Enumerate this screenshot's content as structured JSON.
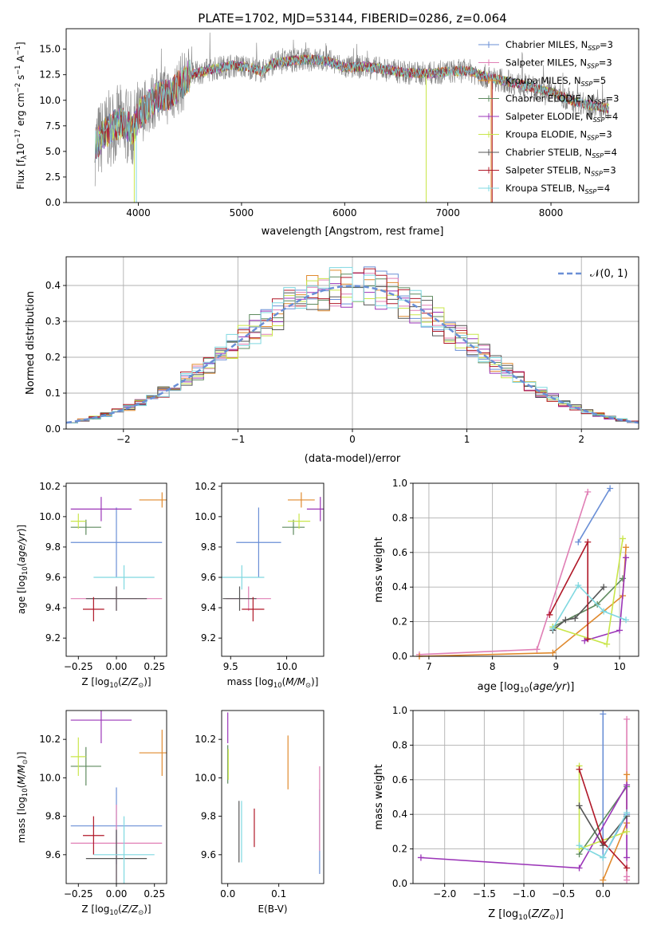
{
  "colors": {
    "Chabrier MILES": "#6a8fd6",
    "Salpeter MILES": "#e07fb5",
    "Kroupa MILES": "#e08a2e",
    "Chabrier ELODIE": "#5e8a5e",
    "Salpeter ELODIE": "#9b35b8",
    "Kroupa ELODIE": "#c9e64a",
    "Chabrier STELIB": "#555555",
    "Salpeter STELIB": "#b01828",
    "Kroupa STELIB": "#7fd8e0",
    "data": "#808080",
    "grid": "#b0b0b0"
  },
  "chart_data": [
    {
      "type": "line",
      "title": "PLATE=1702, MJD=53144, FIBERID=0286, z=0.064",
      "xlabel": "wavelength [Angstrom, rest frame]",
      "ylabel": "Flux [f_λ 10^-17 erg cm^-2 s^-1 A^-1]",
      "xlim": [
        3300,
        8850
      ],
      "ylim": [
        0,
        17
      ],
      "xticks": [
        4000,
        5000,
        6000,
        7000,
        8000
      ],
      "yticks": [
        0.0,
        2.5,
        5.0,
        7.5,
        10.0,
        12.5,
        15.0
      ],
      "grid": false,
      "legend_position": "right",
      "legend": [
        {
          "model": "Chabrier MILES",
          "n": 3
        },
        {
          "model": "Salpeter MILES",
          "n": 3
        },
        {
          "model": "Kroupa MILES",
          "n": 5
        },
        {
          "model": "Chabrier ELODIE",
          "n": 3
        },
        {
          "model": "Salpeter ELODIE",
          "n": 4
        },
        {
          "model": "Kroupa ELODIE",
          "n": 3
        },
        {
          "model": "Chabrier STELIB",
          "n": 4
        },
        {
          "model": "Salpeter STELIB",
          "n": 3
        },
        {
          "model": "Kroupa STELIB",
          "n": 4
        }
      ],
      "continuum": [
        [
          3580,
          5.5
        ],
        [
          3650,
          6.5
        ],
        [
          3750,
          7.5
        ],
        [
          3850,
          7.8
        ],
        [
          3950,
          7.0
        ],
        [
          4000,
          8.5
        ],
        [
          4100,
          9.5
        ],
        [
          4200,
          10.5
        ],
        [
          4300,
          10.5
        ],
        [
          4400,
          11.5
        ],
        [
          4500,
          12.5
        ],
        [
          4700,
          13.0
        ],
        [
          4900,
          13.4
        ],
        [
          5100,
          13.2
        ],
        [
          5200,
          12.8
        ],
        [
          5300,
          13.6
        ],
        [
          5500,
          13.9
        ],
        [
          5700,
          14.0
        ],
        [
          5850,
          13.8
        ],
        [
          6000,
          13.2
        ],
        [
          6200,
          13.3
        ],
        [
          6400,
          13.0
        ],
        [
          6600,
          12.7
        ],
        [
          6800,
          12.6
        ],
        [
          7000,
          12.8
        ],
        [
          7200,
          12.9
        ],
        [
          7400,
          12.2
        ],
        [
          7600,
          11.8
        ],
        [
          7800,
          11.3
        ],
        [
          8000,
          10.8
        ],
        [
          8200,
          10.0
        ],
        [
          8400,
          9.5
        ],
        [
          8560,
          9.2
        ]
      ]
    },
    {
      "type": "histogram",
      "xlabel": "(data-model)/error",
      "ylabel": "Normed distribution",
      "xlim": [
        -2.5,
        2.5
      ],
      "ylim": [
        0,
        0.48
      ],
      "xticks": [
        -2,
        -1,
        0,
        1,
        2
      ],
      "yticks": [
        0.0,
        0.1,
        0.2,
        0.3,
        0.4
      ],
      "grid": true,
      "legend_position": "top-right",
      "legend_label": "𝒩(0, 1)",
      "bin_width": 0.1
    },
    {
      "type": "scatter",
      "xlabel": "Z [log10(Z/Z☉)]",
      "ylabel": "age [log10(age/yr)]",
      "xlim": [
        -0.33,
        0.33
      ],
      "ylim": [
        9.08,
        10.22
      ],
      "xticks": [
        -0.25,
        0.0,
        0.25
      ],
      "xtick_labels": [
        "−0.25",
        "0.00",
        "0.25"
      ],
      "yticks": [
        9.2,
        9.4,
        9.6,
        9.8,
        10.0,
        10.2
      ],
      "points": [
        {
          "model": "Chabrier MILES",
          "x": 0.0,
          "xerr": 0.3,
          "y": 9.83,
          "yerr": 0.23
        },
        {
          "model": "Salpeter MILES",
          "x": 0.0,
          "xerr": 0.3,
          "y": 9.46,
          "yerr": 0.08
        },
        {
          "model": "Kroupa MILES",
          "x": 0.3,
          "xerr": 0.15,
          "y": 10.11,
          "yerr": 0.05
        },
        {
          "model": "Chabrier ELODIE",
          "x": -0.2,
          "xerr": 0.1,
          "y": 9.93,
          "yerr": 0.05
        },
        {
          "model": "Salpeter ELODIE",
          "x": -0.1,
          "xerr": 0.2,
          "y": 10.05,
          "yerr": 0.08
        },
        {
          "model": "Kroupa ELODIE",
          "x": -0.25,
          "xerr": 0.05,
          "y": 9.97,
          "yerr": 0.05
        },
        {
          "model": "Chabrier STELIB",
          "x": 0.0,
          "xerr": 0.2,
          "y": 9.46,
          "yerr": 0.08
        },
        {
          "model": "Salpeter STELIB",
          "x": -0.15,
          "xerr": 0.07,
          "y": 9.39,
          "yerr": 0.08
        },
        {
          "model": "Kroupa STELIB",
          "x": 0.05,
          "xerr": 0.2,
          "y": 9.6,
          "yerr": 0.08
        }
      ]
    },
    {
      "type": "scatter",
      "xlabel": "mass [log10(M/M☉)]",
      "ylabel": "",
      "xlim": [
        9.42,
        10.33
      ],
      "ylim": [
        9.08,
        10.22
      ],
      "xticks": [
        9.5,
        10.0
      ],
      "xtick_labels": [
        "9.5",
        "10.0"
      ],
      "yticks": [
        9.2,
        9.4,
        9.6,
        9.8,
        10.0,
        10.2
      ],
      "points": [
        {
          "model": "Chabrier MILES",
          "x": 9.75,
          "xerr": 0.2,
          "y": 9.83,
          "yerr": 0.23
        },
        {
          "model": "Salpeter MILES",
          "x": 9.66,
          "xerr": 0.2,
          "y": 9.46,
          "yerr": 0.08
        },
        {
          "model": "Kroupa MILES",
          "x": 10.13,
          "xerr": 0.12,
          "y": 10.11,
          "yerr": 0.05
        },
        {
          "model": "Chabrier ELODIE",
          "x": 10.06,
          "xerr": 0.1,
          "y": 9.93,
          "yerr": 0.05
        },
        {
          "model": "Salpeter ELODIE",
          "x": 10.3,
          "xerr": 0.12,
          "y": 10.05,
          "yerr": 0.08
        },
        {
          "model": "Kroupa ELODIE",
          "x": 10.11,
          "xerr": 0.1,
          "y": 9.97,
          "yerr": 0.05
        },
        {
          "model": "Chabrier STELIB",
          "x": 9.58,
          "xerr": 0.15,
          "y": 9.46,
          "yerr": 0.08
        },
        {
          "model": "Salpeter STELIB",
          "x": 9.7,
          "xerr": 0.1,
          "y": 9.39,
          "yerr": 0.08
        },
        {
          "model": "Kroupa STELIB",
          "x": 9.6,
          "xerr": 0.2,
          "y": 9.6,
          "yerr": 0.08
        }
      ]
    },
    {
      "type": "line",
      "xlabel": "age [log10(age/yr)]",
      "ylabel": "mass weight",
      "xlim": [
        6.75,
        10.3
      ],
      "ylim": [
        0,
        1.0
      ],
      "xticks": [
        7,
        8,
        9,
        10
      ],
      "yticks": [
        0.0,
        0.2,
        0.4,
        0.6,
        0.8,
        1.0
      ],
      "grid": true,
      "series": [
        {
          "model": "Chabrier MILES",
          "x": [
            9.35,
            9.85
          ],
          "y": [
            0.66,
            0.97
          ]
        },
        {
          "model": "Salpeter MILES",
          "x": [
            6.85,
            8.7,
            9.5
          ],
          "y": [
            0.01,
            0.04,
            0.95
          ]
        },
        {
          "model": "Kroupa MILES",
          "x": [
            6.85,
            8.95,
            10.05,
            10.1
          ],
          "y": [
            0.0,
            0.02,
            0.35,
            0.63
          ]
        },
        {
          "model": "Chabrier ELODIE",
          "x": [
            8.95,
            9.65,
            10.05
          ],
          "y": [
            0.17,
            0.3,
            0.45
          ]
        },
        {
          "model": "Salpeter ELODIE",
          "x": [
            9.45,
            10.0,
            10.1
          ],
          "y": [
            0.09,
            0.15,
            0.57
          ]
        },
        {
          "model": "Kroupa ELODIE",
          "x": [
            8.95,
            9.8,
            10.05
          ],
          "y": [
            0.17,
            0.07,
            0.68
          ]
        },
        {
          "model": "Chabrier STELIB",
          "x": [
            8.95,
            9.15,
            9.3,
            9.75
          ],
          "y": [
            0.15,
            0.21,
            0.22,
            0.4
          ]
        },
        {
          "model": "Salpeter STELIB",
          "x": [
            8.9,
            9.5,
            9.5
          ],
          "y": [
            0.24,
            0.66,
            0.1
          ]
        },
        {
          "model": "Kroupa STELIB",
          "x": [
            8.95,
            9.35,
            9.75,
            10.1
          ],
          "y": [
            0.16,
            0.41,
            0.26,
            0.21
          ]
        }
      ]
    },
    {
      "type": "scatter",
      "xlabel": "Z [log10(Z/Z☉)]",
      "ylabel": "mass [log10(M/M☉)]",
      "xlim": [
        -0.33,
        0.33
      ],
      "ylim": [
        9.45,
        10.35
      ],
      "xticks": [
        -0.25,
        0.0,
        0.25
      ],
      "xtick_labels": [
        "−0.25",
        "0.00",
        "0.25"
      ],
      "yticks": [
        9.6,
        9.8,
        10.0,
        10.2
      ],
      "points": [
        {
          "model": "Chabrier MILES",
          "x": 0.0,
          "xerr": 0.3,
          "y": 9.75,
          "yerr": 0.2
        },
        {
          "model": "Salpeter MILES",
          "x": 0.0,
          "xerr": 0.3,
          "y": 9.66,
          "yerr": 0.2
        },
        {
          "model": "Kroupa MILES",
          "x": 0.3,
          "xerr": 0.15,
          "y": 10.13,
          "yerr": 0.12
        },
        {
          "model": "Chabrier ELODIE",
          "x": -0.2,
          "xerr": 0.1,
          "y": 10.06,
          "yerr": 0.1
        },
        {
          "model": "Salpeter ELODIE",
          "x": -0.1,
          "xerr": 0.2,
          "y": 10.3,
          "yerr": 0.12
        },
        {
          "model": "Kroupa ELODIE",
          "x": -0.25,
          "xerr": 0.05,
          "y": 10.11,
          "yerr": 0.1
        },
        {
          "model": "Chabrier STELIB",
          "x": 0.0,
          "xerr": 0.2,
          "y": 9.58,
          "yerr": 0.15
        },
        {
          "model": "Salpeter STELIB",
          "x": -0.15,
          "xerr": 0.07,
          "y": 9.7,
          "yerr": 0.1
        },
        {
          "model": "Kroupa STELIB",
          "x": 0.05,
          "xerr": 0.2,
          "y": 9.6,
          "yerr": 0.2
        }
      ]
    },
    {
      "type": "scatter",
      "xlabel": "E(B-V)",
      "ylabel": "",
      "xlim": [
        -0.012,
        0.188
      ],
      "ylim": [
        9.45,
        10.35
      ],
      "xticks": [
        0.0,
        0.1
      ],
      "xtick_labels": [
        "0.0",
        "0.1"
      ],
      "yticks": [
        9.6,
        9.8,
        10.0,
        10.2
      ],
      "points": [
        {
          "model": "Chabrier MILES",
          "x": 0.18,
          "y": 9.72,
          "yerr": 0.22
        },
        {
          "model": "Salpeter MILES",
          "x": 0.18,
          "y": 9.84,
          "yerr": 0.22
        },
        {
          "model": "Kroupa MILES",
          "x": 0.118,
          "y": 10.08,
          "yerr": 0.14
        },
        {
          "model": "Chabrier ELODIE",
          "x": 0.0,
          "y": 10.07,
          "yerr": 0.1
        },
        {
          "model": "Salpeter ELODIE",
          "x": 0.0,
          "y": 10.26,
          "yerr": 0.08
        },
        {
          "model": "Kroupa ELODIE",
          "x": 0.001,
          "y": 10.07,
          "yerr": 0.08
        },
        {
          "model": "Chabrier STELIB",
          "x": 0.022,
          "y": 9.72,
          "yerr": 0.16
        },
        {
          "model": "Salpeter STELIB",
          "x": 0.052,
          "y": 9.74,
          "yerr": 0.1
        },
        {
          "model": "Kroupa STELIB",
          "x": 0.027,
          "y": 9.72,
          "yerr": 0.16
        }
      ]
    },
    {
      "type": "line",
      "xlabel": "Z [log10(Z/Z☉)]",
      "ylabel": "mass weight",
      "xlim": [
        -2.4,
        0.45
      ],
      "ylim": [
        0,
        1.0
      ],
      "xticks": [
        -2.0,
        -1.5,
        -1.0,
        -0.5,
        0.0
      ],
      "xtick_labels": [
        "−2.0",
        "−1.5",
        "−1.0",
        "−0.5",
        "0.0"
      ],
      "yticks": [
        0.0,
        0.2,
        0.4,
        0.6,
        0.8,
        1.0
      ],
      "grid": true,
      "series": [
        {
          "model": "Chabrier MILES",
          "x": [
            0.0,
            0.0,
            0.3
          ],
          "y": [
            0.98,
            0.15,
            0.4
          ]
        },
        {
          "model": "Salpeter MILES",
          "x": [
            0.3,
            0.3,
            0.3
          ],
          "y": [
            0.95,
            0.04,
            0.02
          ]
        },
        {
          "model": "Kroupa MILES",
          "x": [
            0.0,
            0.3,
            0.3
          ],
          "y": [
            0.02,
            0.35,
            0.63
          ]
        },
        {
          "model": "Chabrier ELODIE",
          "x": [
            -0.3,
            0.3
          ],
          "y": [
            0.17,
            0.56
          ]
        },
        {
          "model": "Salpeter ELODIE",
          "x": [
            -2.3,
            -0.3,
            0.3,
            0.3
          ],
          "y": [
            0.15,
            0.09,
            0.57,
            0.15
          ]
        },
        {
          "model": "Kroupa ELODIE",
          "x": [
            -0.3,
            -0.3,
            0.3
          ],
          "y": [
            0.68,
            0.2,
            0.3
          ]
        },
        {
          "model": "Chabrier STELIB",
          "x": [
            -0.3,
            0.0,
            0.3
          ],
          "y": [
            0.45,
            0.22,
            0.39
          ]
        },
        {
          "model": "Salpeter STELIB",
          "x": [
            -0.3,
            0.0,
            0.3
          ],
          "y": [
            0.66,
            0.24,
            0.09
          ]
        },
        {
          "model": "Kroupa STELIB",
          "x": [
            -0.3,
            0.0,
            0.3
          ],
          "y": [
            0.22,
            0.15,
            0.41
          ]
        }
      ]
    }
  ]
}
